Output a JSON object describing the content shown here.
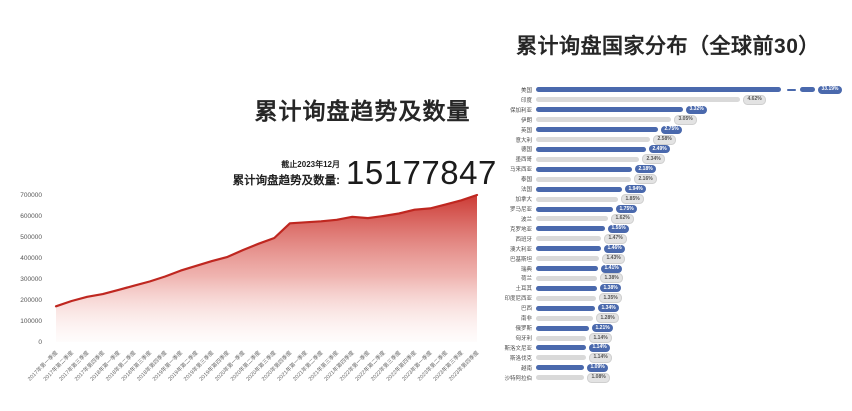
{
  "left_chart": {
    "title": "累计询盘趋势及数量",
    "stat_note": "截止2023年12月",
    "stat_label": "累计询盘趋势及数量:",
    "stat_value": "15177847"
  },
  "right_chart": {
    "title": "累计询盘国家分布（全球前30）"
  },
  "colors": {
    "area_line": "#bf2720",
    "area_fill_top": "#c9302a",
    "area_fill_bottom": "#fdeeec",
    "bar_blue": "#4a69ad",
    "bar_gray": "#d9d9d9",
    "pill_gray_bg": "#e3e3e3",
    "title_text": "#262626",
    "axis_text": "#6b6b6b"
  },
  "chart_data": [
    {
      "type": "area",
      "title": "累计询盘趋势及数量",
      "xlabel": "",
      "ylabel": "",
      "grid": false,
      "legend": "none",
      "ylim": [
        0,
        700000
      ],
      "yticks": [
        0,
        100000,
        200000,
        300000,
        400000,
        500000,
        600000,
        700000
      ],
      "categories": [
        "2017年第一季度",
        "2017年第二季度",
        "2017年第三季度",
        "2017年第四季度",
        "2018年第一季度",
        "2018年第二季度",
        "2018年第三季度",
        "2018年第四季度",
        "2019年第一季度",
        "2019年第二季度",
        "2019年第三季度",
        "2019年第四季度",
        "2020年第一季度",
        "2020年第二季度",
        "2020年第三季度",
        "2020年第四季度",
        "2021年第一季度",
        "2021年第二季度",
        "2021年第三季度",
        "2021年第四季度",
        "2022年第一季度",
        "2022年第二季度",
        "2022年第三季度",
        "2022年第四季度",
        "2023年第一季度",
        "2023年第二季度",
        "2023年第三季度",
        "2023年第四季度"
      ],
      "values": [
        170000,
        195000,
        215000,
        228000,
        248000,
        268000,
        288000,
        312000,
        340000,
        363000,
        385000,
        405000,
        438000,
        468000,
        495000,
        565000,
        570000,
        575000,
        582000,
        596000,
        590000,
        600000,
        612000,
        630000,
        636000,
        655000,
        675000,
        700000
      ]
    },
    {
      "type": "bar",
      "orientation": "horizontal",
      "title": "累计询盘国家分布（全球前30）",
      "unit": "%",
      "axis_break_on_first": true,
      "alternating_colors": [
        "#4a69ad",
        "#d9d9d9"
      ],
      "categories": [
        "美国",
        "印度",
        "保加利亚",
        "伊朗",
        "英国",
        "意大利",
        "德国",
        "墨西哥",
        "马来西亚",
        "泰国",
        "法国",
        "加拿大",
        "罗马尼亚",
        "波兰",
        "克罗地亚",
        "西班牙",
        "澳大利亚",
        "巴基斯坦",
        "瑞典",
        "荷兰",
        "土耳其",
        "印度尼西亚",
        "巴西",
        "南非",
        "俄罗斯",
        "匈牙利",
        "斯洛文尼亚",
        "斯洛伐克",
        "越南",
        "沙特阿拉伯"
      ],
      "values": [
        33.19,
        4.62,
        3.32,
        3.05,
        2.75,
        2.58,
        2.49,
        2.34,
        2.18,
        2.16,
        1.94,
        1.85,
        1.75,
        1.62,
        1.55,
        1.47,
        1.46,
        1.43,
        1.41,
        1.38,
        1.38,
        1.35,
        1.34,
        1.28,
        1.21,
        1.14,
        1.14,
        1.14,
        1.09,
        1.08
      ]
    }
  ]
}
